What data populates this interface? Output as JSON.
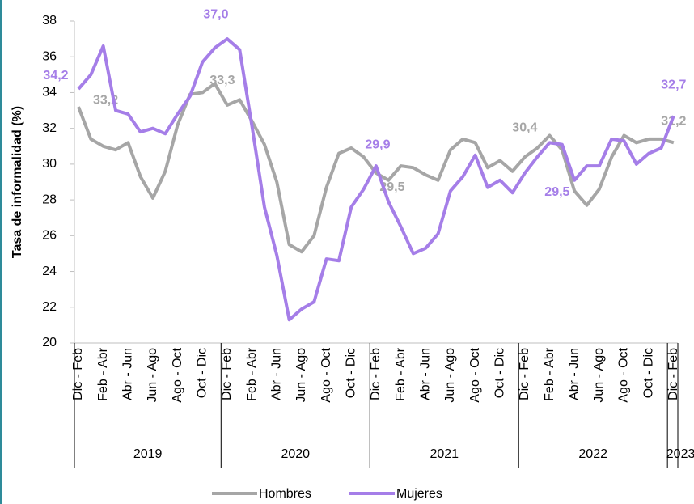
{
  "chart_data": {
    "type": "line",
    "y_label": "Tasa de informalidad (%)",
    "categories": [
      "Dic - Feb",
      null,
      "Feb - Abr",
      null,
      "Abr - Jun",
      null,
      "Jun - Ago",
      null,
      "Ago - Oct",
      null,
      "Oct - Dic",
      null,
      "Dic - Feb",
      null,
      "Feb - Abr",
      null,
      "Abr - Jun",
      null,
      "Jun - Ago",
      null,
      "Ago - Oct",
      null,
      "Oct - Dic",
      null,
      "Dic - Feb",
      null,
      "Feb - Abr",
      null,
      "Abr - Jun",
      null,
      "Jun - Ago",
      null,
      "Ago - Oct",
      null,
      "Oct - Dic",
      null,
      "Dic - Feb",
      null,
      "Feb - Abr",
      null,
      "Abr - Jun",
      null,
      "Jun - Ago",
      null,
      "Ago - Oct",
      null,
      "Oct - Dic",
      null,
      "Dic - Feb"
    ],
    "groups": [
      {
        "label": "2019",
        "count": 12
      },
      {
        "label": "2020",
        "count": 12
      },
      {
        "label": "2021",
        "count": 12
      },
      {
        "label": "2022",
        "count": 12
      },
      {
        "label": "2023",
        "count": 1
      }
    ],
    "series": [
      {
        "name": "Hombres",
        "color": "#a6a6a6",
        "values": [
          33.2,
          31.4,
          31.0,
          30.8,
          31.2,
          29.3,
          28.1,
          29.6,
          32.2,
          33.9,
          34.0,
          34.5,
          33.3,
          33.6,
          32.4,
          31.1,
          29.0,
          25.5,
          25.1,
          26.0,
          28.7,
          30.6,
          30.9,
          30.4,
          29.5,
          29.1,
          29.9,
          29.8,
          29.4,
          29.1,
          30.8,
          31.4,
          31.2,
          29.8,
          30.2,
          29.6,
          30.4,
          30.9,
          31.6,
          30.8,
          28.5,
          27.7,
          28.6,
          30.4,
          31.6,
          31.2,
          31.4,
          31.4,
          31.2
        ],
        "value_labels": [
          "33,2",
          null,
          null,
          null,
          null,
          null,
          null,
          null,
          null,
          null,
          null,
          null,
          "33,3",
          null,
          null,
          null,
          null,
          null,
          null,
          null,
          null,
          null,
          null,
          null,
          "29,5",
          null,
          null,
          null,
          null,
          null,
          null,
          null,
          null,
          null,
          null,
          null,
          "30,4",
          null,
          null,
          null,
          null,
          null,
          null,
          null,
          null,
          null,
          null,
          null,
          "31,2"
        ]
      },
      {
        "name": "Mujeres",
        "color": "#a57ee8",
        "values": [
          34.2,
          35.0,
          36.6,
          33.0,
          32.8,
          31.8,
          32.0,
          31.7,
          32.8,
          33.8,
          35.7,
          36.5,
          37.0,
          36.4,
          32.1,
          27.6,
          24.9,
          21.3,
          21.9,
          22.3,
          24.7,
          24.6,
          27.6,
          28.6,
          29.9,
          27.9,
          26.5,
          25.0,
          25.3,
          26.1,
          28.5,
          29.3,
          30.5,
          28.7,
          29.1,
          28.4,
          29.5,
          30.4,
          31.2,
          31.1,
          29.1,
          29.9,
          29.9,
          31.4,
          31.3,
          30.0,
          30.6,
          30.9,
          32.7
        ],
        "value_labels": [
          "34,2",
          null,
          null,
          null,
          null,
          null,
          null,
          null,
          null,
          null,
          null,
          null,
          "37,0",
          null,
          null,
          null,
          null,
          null,
          null,
          null,
          null,
          null,
          null,
          null,
          "29,9",
          null,
          null,
          null,
          null,
          null,
          null,
          null,
          null,
          null,
          null,
          null,
          "29,5",
          null,
          null,
          null,
          null,
          null,
          null,
          null,
          null,
          null,
          null,
          null,
          "32,7"
        ]
      }
    ],
    "ylim": [
      20,
      38
    ],
    "yticks": [
      20,
      22,
      24,
      26,
      28,
      30,
      32,
      34,
      36,
      38
    ],
    "grid": false,
    "legend": "bottom"
  }
}
